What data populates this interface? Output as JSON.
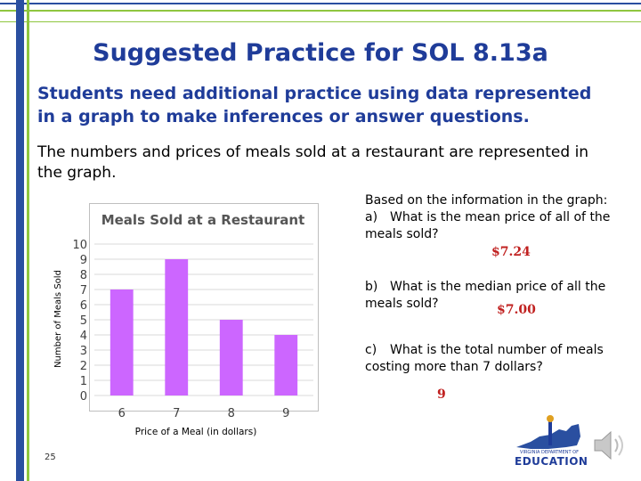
{
  "slide": {
    "title": "Suggested Practice for SOL 8.13a",
    "subtitle": "Students need additional practice using data represented in a graph to make inferences or answer questions.",
    "intro": "The numbers and prices of meals sold at a restaurant are represented in the graph.",
    "page_number": "25"
  },
  "questions": {
    "intro": "Based on the information in the graph:",
    "items": [
      {
        "marker": "a)",
        "text": "What is the mean price of all of the meals sold?",
        "answer": "$7.24"
      },
      {
        "marker": "b)",
        "text": "What is the median price of all the meals sold?",
        "answer": "$7.00"
      },
      {
        "marker": "c)",
        "text": "What is the total number of meals costing more than 7 dollars?",
        "answer": "9"
      }
    ]
  },
  "logo": {
    "top_text": "VIRGINIA DEPARTMENT OF",
    "main_text": "EDUCATION"
  },
  "icons": {
    "speaker": "speaker-icon"
  },
  "colors": {
    "title": "#1f3c99",
    "bar": "#cc66ff",
    "answer": "#c0201f"
  },
  "chart_data": {
    "type": "bar",
    "title": "Meals Sold at a Restaurant",
    "xlabel": "Price of a Meal (in dollars)",
    "ylabel": "Number of Meals Sold",
    "categories": [
      "6",
      "7",
      "8",
      "9"
    ],
    "values": [
      7,
      9,
      5,
      4
    ],
    "ylim": [
      0,
      10
    ],
    "yticks": [
      0,
      1,
      2,
      3,
      4,
      5,
      6,
      7,
      8,
      9,
      10
    ],
    "grid": true,
    "legend": "none"
  }
}
